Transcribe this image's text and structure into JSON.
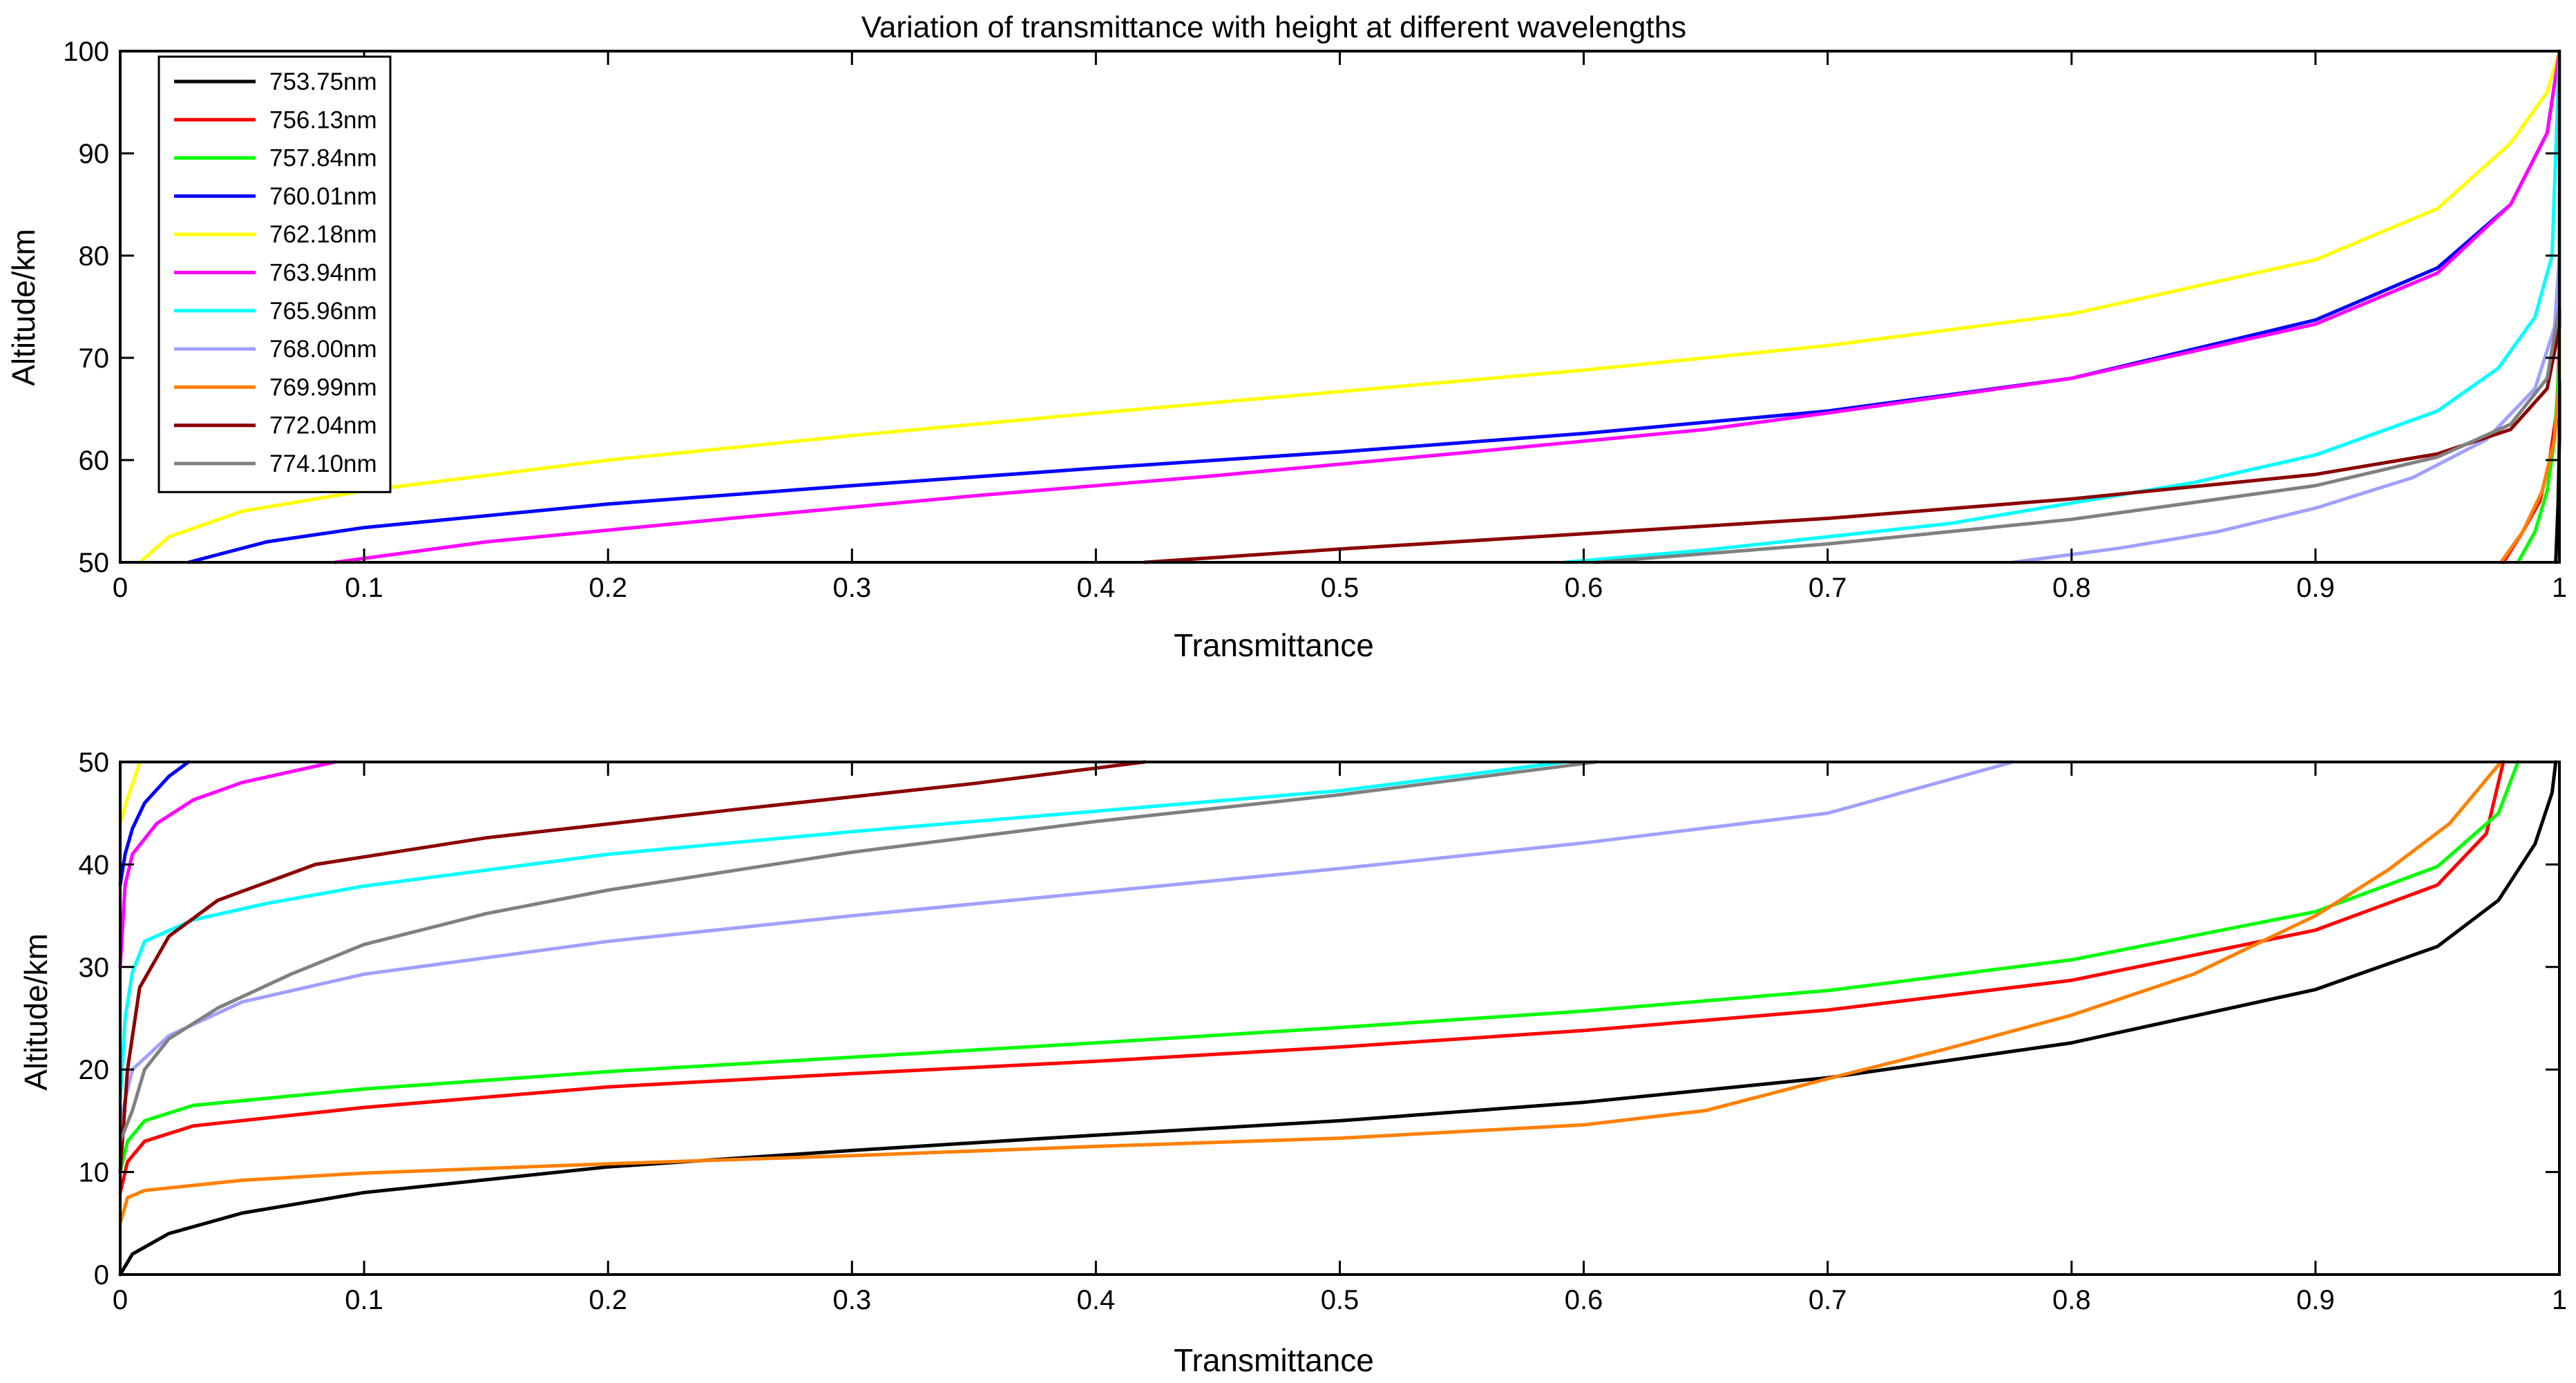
{
  "chart_data": [
    {
      "type": "line",
      "title": "Variation of transmittance with height at different wavelengths",
      "xlabel": "Transmittance",
      "ylabel": "Altitude/km",
      "xlim": [
        0,
        1
      ],
      "ylim": [
        50,
        100
      ],
      "xticks": [
        "0",
        "0.1",
        "0.2",
        "0.3",
        "0.4",
        "0.5",
        "0.6",
        "0.7",
        "0.8",
        "0.9",
        "1"
      ],
      "yticks": [
        "50",
        "60",
        "70",
        "80",
        "90",
        "100"
      ],
      "legend_position": "top-left",
      "series": [
        {
          "name": "753.75nm",
          "color": "#000000",
          "points": [
            [
              0.9985,
              50
            ],
            [
              0.9995,
              56
            ],
            [
              1.0,
              62
            ],
            [
              1.0,
              100
            ]
          ]
        },
        {
          "name": "756.13nm",
          "color": "#ff0000",
          "points": [
            [
              0.977,
              50
            ],
            [
              0.985,
              53
            ],
            [
              0.992,
              56
            ],
            [
              0.996,
              60
            ],
            [
              0.999,
              65
            ],
            [
              1.0,
              72
            ],
            [
              1.0,
              100
            ]
          ]
        },
        {
          "name": "757.84nm",
          "color": "#00ff00",
          "points": [
            [
              0.983,
              50
            ],
            [
              0.99,
              53
            ],
            [
              0.995,
              57
            ],
            [
              0.998,
              62
            ],
            [
              1.0,
              70
            ],
            [
              1.0,
              100
            ]
          ]
        },
        {
          "name": "760.01nm",
          "color": "#0000ff",
          "points": [
            [
              0.028,
              50
            ],
            [
              0.06,
              52
            ],
            [
              0.1,
              53.4
            ],
            [
              0.2,
              55.7
            ],
            [
              0.3,
              57.5
            ],
            [
              0.4,
              59.2
            ],
            [
              0.5,
              60.8
            ],
            [
              0.6,
              62.6
            ],
            [
              0.7,
              64.8
            ],
            [
              0.8,
              68
            ],
            [
              0.9,
              73.7
            ],
            [
              0.95,
              78.8
            ],
            [
              0.98,
              85
            ],
            [
              0.995,
              92
            ],
            [
              1.0,
              100
            ]
          ]
        },
        {
          "name": "762.18nm",
          "color": "#ffff00",
          "points": [
            [
              0.008,
              50
            ],
            [
              0.02,
              52.5
            ],
            [
              0.05,
              55
            ],
            [
              0.1,
              57
            ],
            [
              0.2,
              60
            ],
            [
              0.3,
              62.4
            ],
            [
              0.4,
              64.6
            ],
            [
              0.5,
              66.7
            ],
            [
              0.6,
              68.8
            ],
            [
              0.7,
              71.2
            ],
            [
              0.8,
              74.3
            ],
            [
              0.9,
              79.6
            ],
            [
              0.95,
              84.6
            ],
            [
              0.98,
              91
            ],
            [
              0.995,
              96
            ],
            [
              1.0,
              100
            ]
          ]
        },
        {
          "name": "763.94nm",
          "color": "#ff00ff",
          "points": [
            [
              0.088,
              50
            ],
            [
              0.15,
              52
            ],
            [
              0.25,
              54.3
            ],
            [
              0.35,
              56.5
            ],
            [
              0.45,
              58.5
            ],
            [
              0.55,
              60.7
            ],
            [
              0.65,
              63
            ],
            [
              0.7,
              64.6
            ],
            [
              0.8,
              68
            ],
            [
              0.9,
              73.3
            ],
            [
              0.95,
              78.3
            ],
            [
              0.98,
              85
            ],
            [
              0.995,
              92
            ],
            [
              1.0,
              100
            ]
          ]
        },
        {
          "name": "765.96nm",
          "color": "#00ffff",
          "points": [
            [
              0.592,
              50
            ],
            [
              0.65,
              51.2
            ],
            [
              0.7,
              52.5
            ],
            [
              0.75,
              53.8
            ],
            [
              0.8,
              55.8
            ],
            [
              0.85,
              57.8
            ],
            [
              0.9,
              60.5
            ],
            [
              0.95,
              64.8
            ],
            [
              0.975,
              69
            ],
            [
              0.99,
              74
            ],
            [
              0.997,
              80
            ],
            [
              1.0,
              100
            ]
          ]
        },
        {
          "name": "768.00nm",
          "color": "#a0a0ff",
          "points": [
            [
              0.776,
              50
            ],
            [
              0.82,
              51.4
            ],
            [
              0.86,
              53
            ],
            [
              0.9,
              55.3
            ],
            [
              0.94,
              58.3
            ],
            [
              0.97,
              62
            ],
            [
              0.99,
              67
            ],
            [
              0.998,
              73
            ],
            [
              1.0,
              80
            ],
            [
              1.0,
              100
            ]
          ]
        },
        {
          "name": "769.99nm",
          "color": "#ff8000",
          "points": [
            [
              0.976,
              50
            ],
            [
              0.985,
              53
            ],
            [
              0.993,
              57
            ],
            [
              0.998,
              62
            ],
            [
              1.0,
              68
            ],
            [
              1.0,
              100
            ]
          ]
        },
        {
          "name": "772.04nm",
          "color": "#8b0000",
          "points": [
            [
              0.42,
              50
            ],
            [
              0.5,
              51.3
            ],
            [
              0.6,
              52.8
            ],
            [
              0.7,
              54.3
            ],
            [
              0.8,
              56.2
            ],
            [
              0.9,
              58.6
            ],
            [
              0.95,
              60.6
            ],
            [
              0.98,
              63
            ],
            [
              0.995,
              67
            ],
            [
              1.0,
              73
            ],
            [
              1.0,
              100
            ]
          ]
        },
        {
          "name": "774.10nm",
          "color": "#808080",
          "points": [
            [
              0.605,
              50
            ],
            [
              0.7,
              51.8
            ],
            [
              0.8,
              54.2
            ],
            [
              0.9,
              57.5
            ],
            [
              0.95,
              60.3
            ],
            [
              0.98,
              63.5
            ],
            [
              0.995,
              68
            ],
            [
              1.0,
              75
            ],
            [
              1.0,
              100
            ]
          ]
        }
      ]
    },
    {
      "type": "line",
      "title": "",
      "xlabel": "Transmittance",
      "ylabel": "Altitude/km",
      "xlim": [
        0,
        1
      ],
      "ylim": [
        0,
        50
      ],
      "xticks": [
        "0",
        "0.1",
        "0.2",
        "0.3",
        "0.4",
        "0.5",
        "0.6",
        "0.7",
        "0.8",
        "0.9",
        "1"
      ],
      "yticks": [
        "0",
        "10",
        "20",
        "30",
        "40",
        "50"
      ],
      "series": [
        {
          "name": "753.75nm",
          "color": "#000000",
          "points": [
            [
              0.0,
              0
            ],
            [
              0.005,
              2
            ],
            [
              0.02,
              4
            ],
            [
              0.05,
              6
            ],
            [
              0.1,
              8
            ],
            [
              0.2,
              10.5
            ],
            [
              0.3,
              12.1
            ],
            [
              0.4,
              13.6
            ],
            [
              0.5,
              15
            ],
            [
              0.6,
              16.8
            ],
            [
              0.7,
              19.2
            ],
            [
              0.8,
              22.6
            ],
            [
              0.9,
              27.8
            ],
            [
              0.95,
              32
            ],
            [
              0.975,
              36.5
            ],
            [
              0.99,
              42
            ],
            [
              0.997,
              47
            ],
            [
              0.9985,
              50
            ]
          ]
        },
        {
          "name": "756.13nm",
          "color": "#ff0000",
          "points": [
            [
              0.0,
              8
            ],
            [
              0.003,
              11
            ],
            [
              0.01,
              13
            ],
            [
              0.03,
              14.5
            ],
            [
              0.1,
              16.3
            ],
            [
              0.2,
              18.3
            ],
            [
              0.3,
              19.6
            ],
            [
              0.4,
              20.8
            ],
            [
              0.5,
              22.2
            ],
            [
              0.6,
              23.8
            ],
            [
              0.7,
              25.8
            ],
            [
              0.8,
              28.7
            ],
            [
              0.9,
              33.6
            ],
            [
              0.95,
              38
            ],
            [
              0.97,
              43
            ],
            [
              0.977,
              50
            ]
          ]
        },
        {
          "name": "757.84nm",
          "color": "#00ff00",
          "points": [
            [
              0.0,
              10
            ],
            [
              0.003,
              13
            ],
            [
              0.01,
              15
            ],
            [
              0.03,
              16.5
            ],
            [
              0.1,
              18.1
            ],
            [
              0.2,
              19.8
            ],
            [
              0.3,
              21.2
            ],
            [
              0.4,
              22.6
            ],
            [
              0.5,
              24.1
            ],
            [
              0.6,
              25.7
            ],
            [
              0.7,
              27.7
            ],
            [
              0.8,
              30.7
            ],
            [
              0.9,
              35.4
            ],
            [
              0.95,
              39.8
            ],
            [
              0.975,
              45
            ],
            [
              0.983,
              50
            ]
          ]
        },
        {
          "name": "760.01nm",
          "color": "#0000ff",
          "points": [
            [
              0.0,
              38
            ],
            [
              0.002,
              41
            ],
            [
              0.005,
              43.5
            ],
            [
              0.01,
              46
            ],
            [
              0.02,
              48.6
            ],
            [
              0.028,
              50
            ]
          ]
        },
        {
          "name": "762.18nm",
          "color": "#ffff00",
          "points": [
            [
              0.0,
              44
            ],
            [
              0.003,
              46.5
            ],
            [
              0.006,
              48.5
            ],
            [
              0.008,
              50
            ]
          ]
        },
        {
          "name": "763.94nm",
          "color": "#ff00ff",
          "points": [
            [
              0.0,
              30
            ],
            [
              0.002,
              38
            ],
            [
              0.005,
              41
            ],
            [
              0.015,
              44
            ],
            [
              0.03,
              46.3
            ],
            [
              0.05,
              48
            ],
            [
              0.088,
              50
            ]
          ]
        },
        {
          "name": "765.96nm",
          "color": "#00ffff",
          "points": [
            [
              0.0,
              17
            ],
            [
              0.002,
              25
            ],
            [
              0.005,
              29.5
            ],
            [
              0.01,
              32.5
            ],
            [
              0.03,
              34.6
            ],
            [
              0.06,
              36.2
            ],
            [
              0.1,
              37.9
            ],
            [
              0.2,
              41
            ],
            [
              0.3,
              43.2
            ],
            [
              0.4,
              45.2
            ],
            [
              0.5,
              47.2
            ],
            [
              0.56,
              49
            ],
            [
              0.592,
              50
            ]
          ]
        },
        {
          "name": "768.00nm",
          "color": "#a0a0ff",
          "points": [
            [
              0.0,
              15
            ],
            [
              0.005,
              20
            ],
            [
              0.02,
              23.3
            ],
            [
              0.05,
              26.6
            ],
            [
              0.1,
              29.3
            ],
            [
              0.2,
              32.5
            ],
            [
              0.3,
              35
            ],
            [
              0.4,
              37.3
            ],
            [
              0.5,
              39.6
            ],
            [
              0.6,
              42.1
            ],
            [
              0.7,
              45
            ],
            [
              0.776,
              50
            ]
          ]
        },
        {
          "name": "769.99nm",
          "color": "#ff8000",
          "points": [
            [
              0.0,
              5
            ],
            [
              0.003,
              7.5
            ],
            [
              0.01,
              8.2
            ],
            [
              0.05,
              9.2
            ],
            [
              0.1,
              9.9
            ],
            [
              0.2,
              10.8
            ],
            [
              0.3,
              11.6
            ],
            [
              0.4,
              12.5
            ],
            [
              0.5,
              13.3
            ],
            [
              0.6,
              14.6
            ],
            [
              0.65,
              16
            ],
            [
              0.7,
              19.1
            ],
            [
              0.75,
              22.1
            ],
            [
              0.8,
              25.3
            ],
            [
              0.85,
              29.3
            ],
            [
              0.9,
              35
            ],
            [
              0.93,
              39.5
            ],
            [
              0.955,
              44
            ],
            [
              0.976,
              50
            ]
          ]
        },
        {
          "name": "772.04nm",
          "color": "#8b0000",
          "points": [
            [
              0.0,
              10
            ],
            [
              0.003,
              20
            ],
            [
              0.008,
              28
            ],
            [
              0.02,
              33
            ],
            [
              0.04,
              36.5
            ],
            [
              0.08,
              40
            ],
            [
              0.15,
              42.6
            ],
            [
              0.25,
              45.3
            ],
            [
              0.35,
              47.9
            ],
            [
              0.42,
              50
            ]
          ]
        },
        {
          "name": "774.10nm",
          "color": "#808080",
          "points": [
            [
              0.0,
              13
            ],
            [
              0.005,
              16
            ],
            [
              0.01,
              20
            ],
            [
              0.02,
              23
            ],
            [
              0.04,
              26
            ],
            [
              0.07,
              29.3
            ],
            [
              0.1,
              32.2
            ],
            [
              0.15,
              35.2
            ],
            [
              0.2,
              37.5
            ],
            [
              0.3,
              41.2
            ],
            [
              0.4,
              44.2
            ],
            [
              0.5,
              46.8
            ],
            [
              0.605,
              50
            ]
          ]
        }
      ]
    }
  ]
}
